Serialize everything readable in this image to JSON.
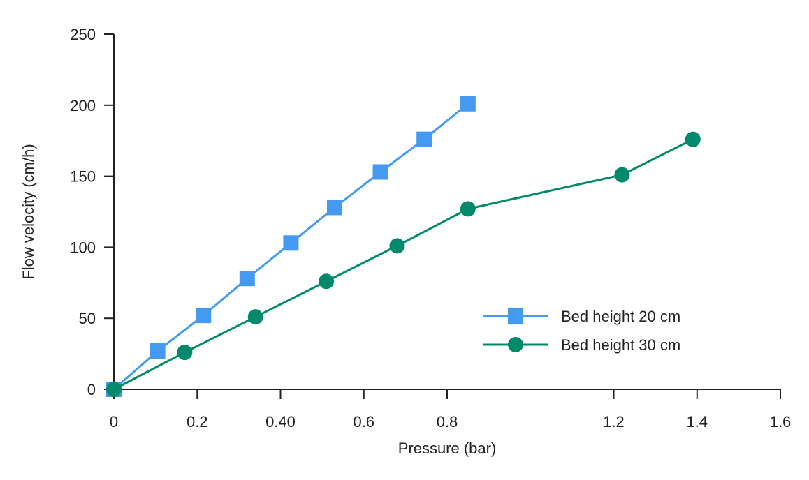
{
  "chart_data": {
    "type": "line",
    "title": "",
    "xlabel": "Pressure (bar)",
    "ylabel": "Flow velocity (cm/h)",
    "xlim": [
      0,
      1.6
    ],
    "ylim": [
      0,
      250
    ],
    "x_ticks": [
      0,
      0.2,
      0.4,
      0.6,
      0.8,
      1.2,
      1.4,
      1.6
    ],
    "x_tick_labels": [
      "0",
      "0.2",
      "0.40",
      "0.6",
      "0.8",
      "1.2",
      "1.4",
      "1.6"
    ],
    "y_ticks": [
      0,
      50,
      100,
      150,
      200,
      250
    ],
    "y_tick_labels": [
      "0",
      "50",
      "100",
      "150",
      "200",
      "250"
    ],
    "grid": false,
    "legend_position": "right-middle",
    "series": [
      {
        "name": "Bed height 20 cm",
        "color": "#4499f0",
        "marker": "square",
        "x": [
          0,
          0.105,
          0.215,
          0.32,
          0.425,
          0.53,
          0.64,
          0.745,
          0.85
        ],
        "y": [
          0,
          27,
          52,
          78,
          103,
          128,
          153,
          176,
          201
        ]
      },
      {
        "name": "Bed height 30 cm",
        "color": "#00896a",
        "marker": "circle",
        "x": [
          0,
          0.17,
          0.34,
          0.51,
          0.68,
          0.85,
          1.22,
          1.39
        ],
        "y": [
          0,
          26,
          51,
          76,
          101,
          127,
          151,
          176
        ]
      }
    ]
  }
}
